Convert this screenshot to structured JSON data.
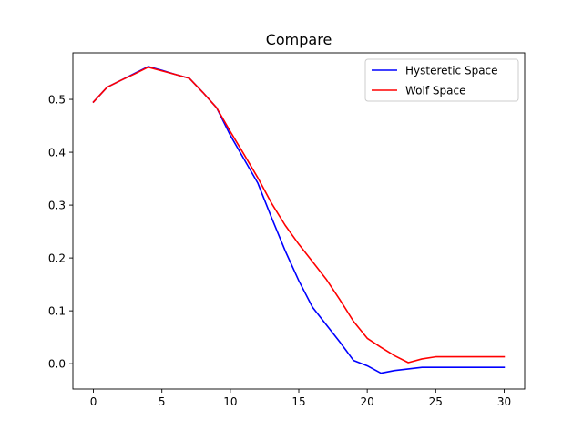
{
  "chart_data": {
    "type": "line",
    "title": "Compare",
    "xlabel": "",
    "ylabel": "",
    "xlim": [
      -1.5,
      31.5
    ],
    "ylim": [
      -0.048,
      0.588
    ],
    "x_ticks": [
      0,
      5,
      10,
      15,
      20,
      25,
      30
    ],
    "y_ticks": [
      0.0,
      0.1,
      0.2,
      0.3,
      0.4,
      0.5
    ],
    "x_tick_labels": [
      "0",
      "5",
      "10",
      "15",
      "20",
      "25",
      "30"
    ],
    "y_tick_labels": [
      "0.0",
      "0.1",
      "0.2",
      "0.3",
      "0.4",
      "0.5"
    ],
    "grid": false,
    "legend_position": "top-right",
    "series": [
      {
        "name": "Hysteretic Space",
        "color": "#0000ff",
        "x": [
          0,
          1,
          2,
          3,
          4,
          5,
          6,
          7,
          8,
          9,
          10,
          11,
          12,
          13,
          14,
          15,
          16,
          17,
          18,
          19,
          20,
          21,
          22,
          23,
          24,
          25,
          26,
          27,
          28,
          29,
          30
        ],
        "y": [
          0.495,
          0.523,
          0.536,
          0.549,
          0.562,
          0.555,
          0.547,
          0.54,
          0.513,
          0.484,
          0.432,
          0.387,
          0.342,
          0.277,
          0.214,
          0.157,
          0.107,
          0.074,
          0.041,
          0.006,
          -0.004,
          -0.018,
          -0.013,
          -0.01,
          -0.007,
          -0.007,
          -0.007,
          -0.007,
          -0.007,
          -0.007,
          -0.007
        ]
      },
      {
        "name": "Wolf Space",
        "color": "#ff0000",
        "x": [
          0,
          1,
          2,
          3,
          4,
          5,
          6,
          7,
          8,
          9,
          10,
          11,
          12,
          13,
          14,
          15,
          16,
          17,
          18,
          19,
          20,
          21,
          22,
          23,
          24,
          25,
          26,
          27,
          28,
          29,
          30
        ],
        "y": [
          0.495,
          0.523,
          0.536,
          0.548,
          0.561,
          0.554,
          0.547,
          0.54,
          0.513,
          0.484,
          0.439,
          0.396,
          0.352,
          0.304,
          0.262,
          0.226,
          0.193,
          0.16,
          0.121,
          0.08,
          0.048,
          0.031,
          0.015,
          0.002,
          0.009,
          0.013,
          0.013,
          0.013,
          0.013,
          0.013,
          0.013
        ]
      }
    ]
  },
  "colors": {
    "axes": "#000000",
    "background": "#ffffff"
  }
}
